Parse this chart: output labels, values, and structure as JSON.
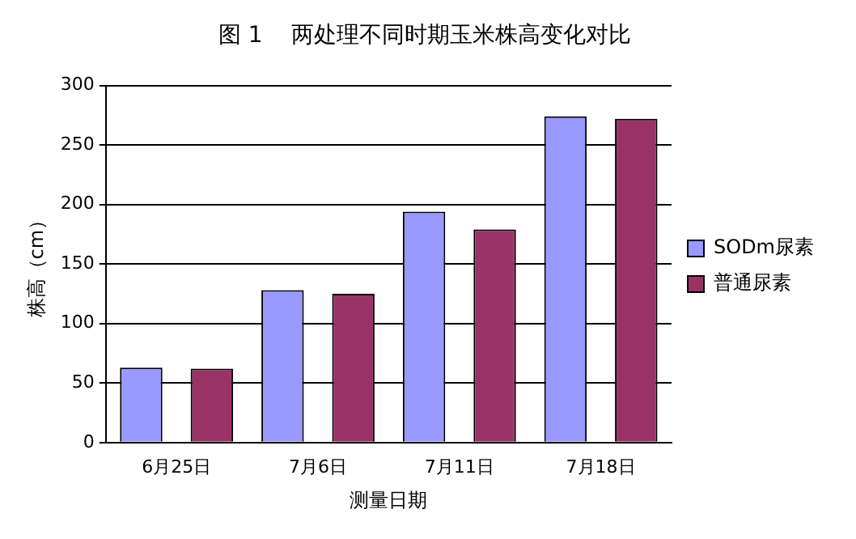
{
  "chart_data": {
    "type": "bar",
    "title": "图 1    两处理不同时期玉米株高变化对比",
    "xlabel": "测量日期",
    "ylabel": "株高（cm）",
    "categories": [
      "6月25日",
      "7月6日",
      "7月11日",
      "7月18日"
    ],
    "series": [
      {
        "name": "SODm尿素",
        "color": "#9999ff",
        "values": [
          63,
          128,
          194,
          274
        ]
      },
      {
        "name": "普通尿素",
        "color": "#993366",
        "values": [
          62,
          125,
          179,
          272
        ]
      }
    ],
    "ylim": [
      0,
      300
    ],
    "yticks": [
      0,
      50,
      100,
      150,
      200,
      250,
      300
    ],
    "grid": "y",
    "legend": "right"
  }
}
